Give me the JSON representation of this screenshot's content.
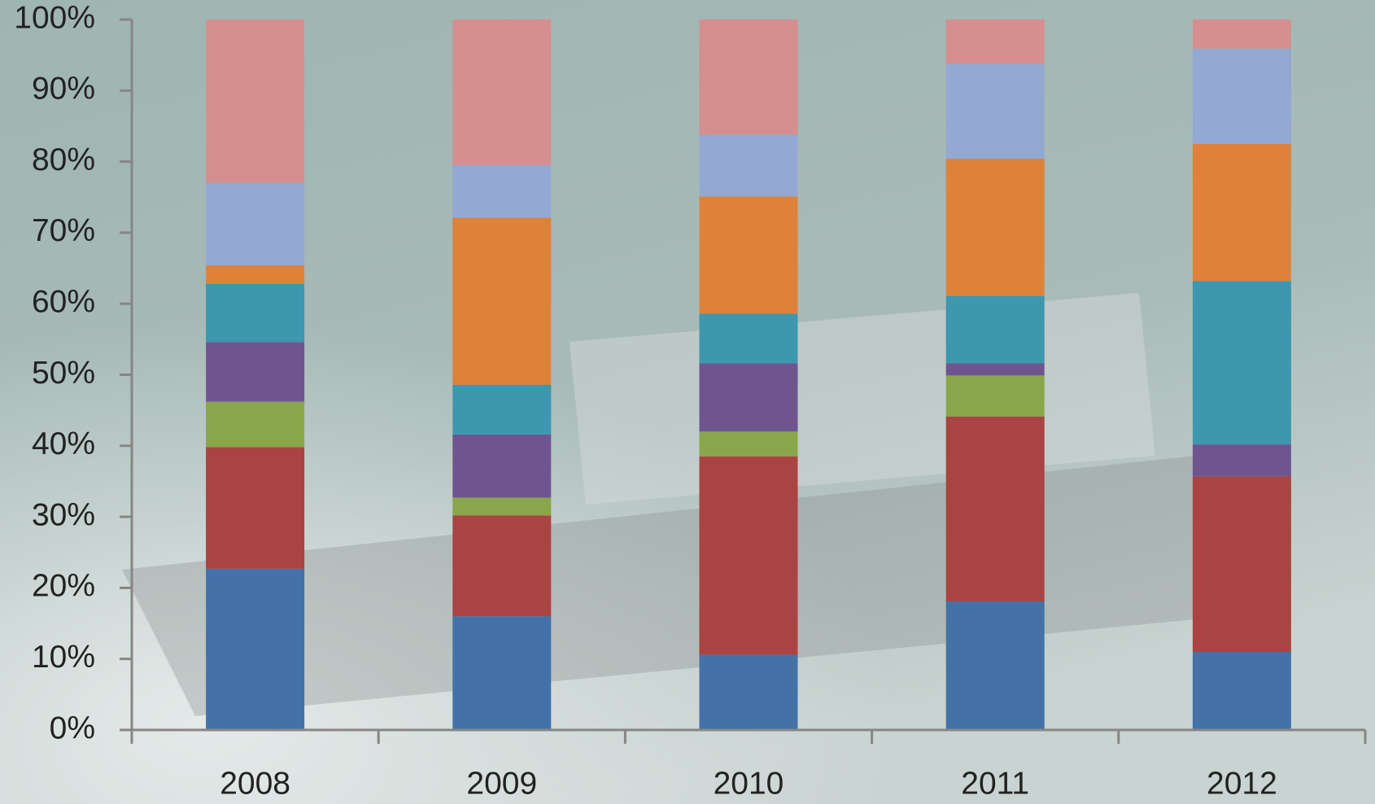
{
  "chart_data": {
    "type": "stacked_bar",
    "categories": [
      "2008",
      "2009",
      "2010",
      "2011",
      "2012"
    ],
    "series": [
      {
        "color": "#4472a8",
        "values": [
          22.7,
          16.0,
          10.6,
          18.1,
          11.0
        ]
      },
      {
        "color": "#a94442",
        "values": [
          17.1,
          14.2,
          27.9,
          26.0,
          24.7
        ]
      },
      {
        "color": "#8aa64b",
        "values": [
          6.4,
          2.5,
          3.5,
          5.8,
          0
        ]
      },
      {
        "color": "#6f5590",
        "values": [
          8.4,
          8.9,
          9.6,
          1.7,
          4.5
        ]
      },
      {
        "color": "#3d97ae",
        "values": [
          8.2,
          7.0,
          7.0,
          9.5,
          23.0
        ]
      },
      {
        "color": "#de823a",
        "values": [
          2.6,
          23.5,
          16.5,
          19.3,
          19.3
        ]
      },
      {
        "color": "#93a9d3",
        "values": [
          11.6,
          7.4,
          8.7,
          13.4,
          13.4
        ]
      },
      {
        "color": "#d48f8e",
        "values": [
          23.0,
          20.5,
          16.2,
          6.2,
          4.1
        ]
      }
    ],
    "ylim": [
      0,
      100
    ],
    "yticks": [
      {
        "value": 0,
        "label": "0%"
      },
      {
        "value": 10,
        "label": "10%"
      },
      {
        "value": 20,
        "label": "20%"
      },
      {
        "value": 30,
        "label": "30%"
      },
      {
        "value": 40,
        "label": "40%"
      },
      {
        "value": 50,
        "label": "50%"
      },
      {
        "value": 60,
        "label": "60%"
      },
      {
        "value": 70,
        "label": "70%"
      },
      {
        "value": 80,
        "label": "80%"
      },
      {
        "value": 90,
        "label": "90%"
      },
      {
        "value": 100,
        "label": "100%"
      }
    ]
  }
}
